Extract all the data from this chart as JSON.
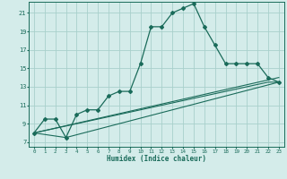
{
  "xlabel": "Humidex (Indice chaleur)",
  "xlim": [
    -0.5,
    23.5
  ],
  "ylim": [
    6.5,
    22.2
  ],
  "xticks": [
    0,
    1,
    2,
    3,
    4,
    5,
    6,
    7,
    8,
    9,
    10,
    11,
    12,
    13,
    14,
    15,
    16,
    17,
    18,
    19,
    20,
    21,
    22,
    23
  ],
  "yticks": [
    7,
    9,
    11,
    13,
    15,
    17,
    19,
    21
  ],
  "bg_color": "#d4ecea",
  "line_color": "#1a6b5a",
  "grid_color": "#a8d0cb",
  "main_x": [
    0,
    1,
    2,
    3,
    4,
    5,
    6,
    7,
    8,
    9,
    10,
    11,
    12,
    13,
    14,
    15,
    16,
    17,
    18,
    19,
    20,
    21,
    22,
    23
  ],
  "main_y": [
    8.0,
    9.5,
    9.5,
    7.5,
    10.0,
    10.5,
    10.5,
    12.0,
    12.5,
    12.5,
    15.5,
    19.5,
    19.5,
    21.0,
    21.5,
    22.0,
    19.5,
    17.5,
    15.5,
    15.5,
    15.5,
    15.5,
    14.0,
    13.5
  ],
  "env_lines": [
    {
      "x": [
        0,
        3,
        23
      ],
      "y": [
        8.0,
        7.5,
        13.5
      ]
    },
    {
      "x": [
        0,
        23
      ],
      "y": [
        8.0,
        14.0
      ]
    },
    {
      "x": [
        0,
        22,
        23
      ],
      "y": [
        8.0,
        13.5,
        13.5
      ]
    }
  ],
  "xlabel_fontsize": 5.5,
  "ytick_fontsize": 5.0,
  "xtick_fontsize": 4.2
}
